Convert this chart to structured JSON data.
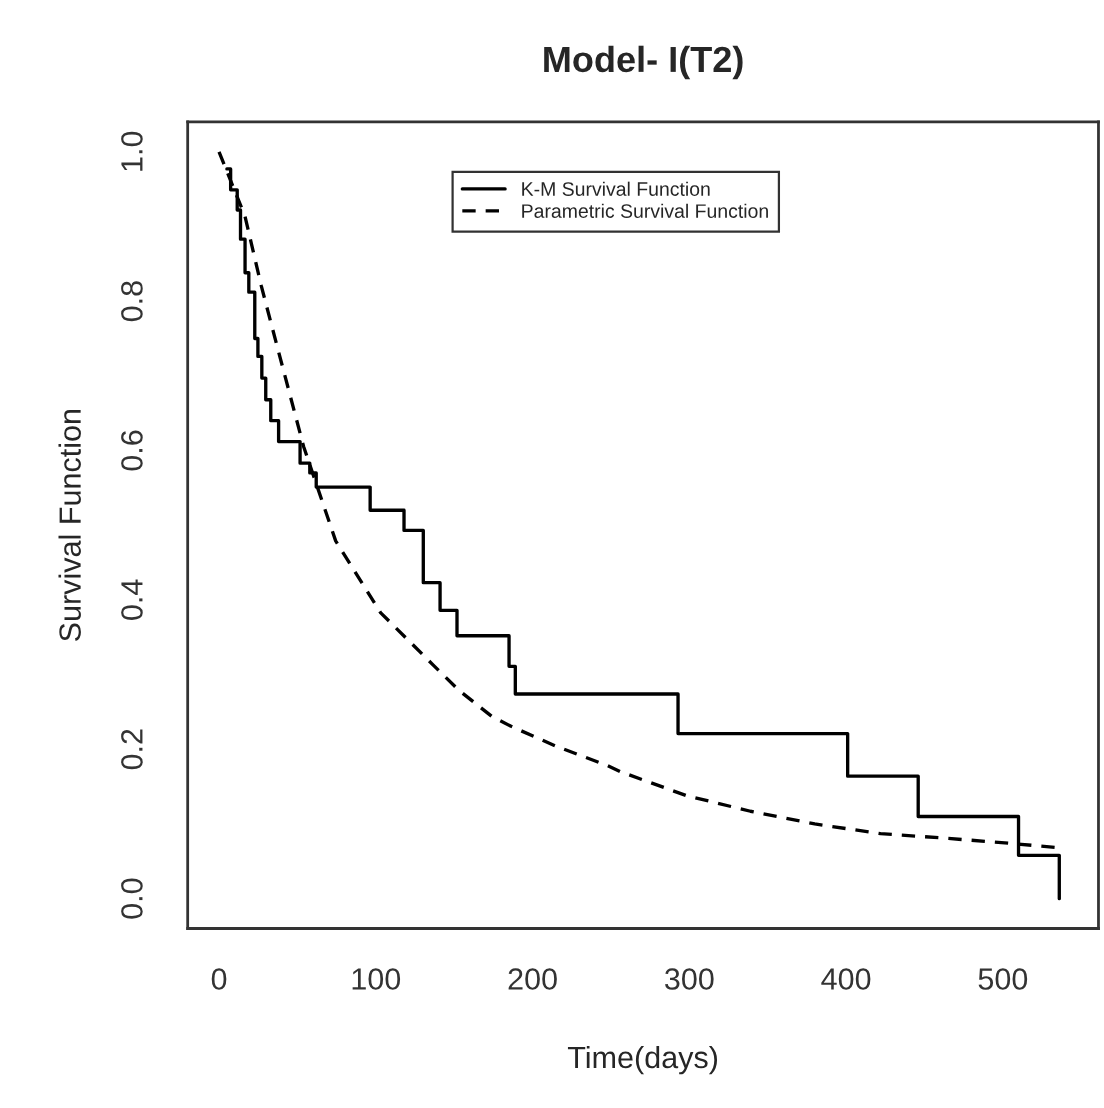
{
  "chart_data": {
    "type": "line",
    "title": "Model- I(T2)",
    "xlabel": "Time(days)",
    "ylabel": "Survival Function",
    "series": [
      {
        "name": "K-M Survival Function",
        "type": "step",
        "color": "#000000",
        "line_style": "solid",
        "x": [
          5,
          7.4,
          11.6,
          13.7,
          16.6,
          19,
          22.8,
          24.8,
          27.3,
          29.8,
          33,
          38,
          51.7,
          57.9,
          62,
          96.4,
          118,
          130.3,
          141,
          151.8,
          185,
          189,
          292.8,
          401,
          446,
          510,
          536
        ],
        "values": [
          0.977,
          0.949,
          0.922,
          0.883,
          0.838,
          0.812,
          0.75,
          0.726,
          0.697,
          0.668,
          0.64,
          0.612,
          0.583,
          0.57,
          0.551,
          0.52,
          0.493,
          0.423,
          0.386,
          0.352,
          0.311,
          0.274,
          0.221,
          0.164,
          0.11,
          0.058,
          0.0
        ]
      },
      {
        "name": "Parametric Survival Function",
        "color": "#000000",
        "line_style": "dashed",
        "x": [
          0,
          16.5,
          27,
          37,
          54,
          74.4,
          103,
          136.5,
          153,
          174,
          186,
          215,
          248,
          256,
          298,
          339,
          380,
          422,
          463,
          505,
          536
        ],
        "values": [
          1.0,
          0.914,
          0.82,
          0.74,
          0.605,
          0.479,
          0.383,
          0.313,
          0.279,
          0.244,
          0.231,
          0.204,
          0.178,
          0.17,
          0.138,
          0.117,
          0.1,
          0.087,
          0.081,
          0.074,
          0.068
        ]
      }
    ],
    "xlim": [
      -20,
      561
    ],
    "ylim": [
      -0.04,
      1.04
    ],
    "xticks": [
      0,
      100,
      200,
      300,
      400,
      500
    ],
    "yticks": [
      {
        "value": 0,
        "label": "0.0"
      },
      {
        "value": 0.2,
        "label": "0.2"
      },
      {
        "value": 0.4,
        "label": "0.4"
      },
      {
        "value": 0.6,
        "label": "0.6"
      },
      {
        "value": 0.8,
        "label": "0.8"
      },
      {
        "value": 1,
        "label": "1.0"
      }
    ],
    "grid": false,
    "legend": "top"
  }
}
